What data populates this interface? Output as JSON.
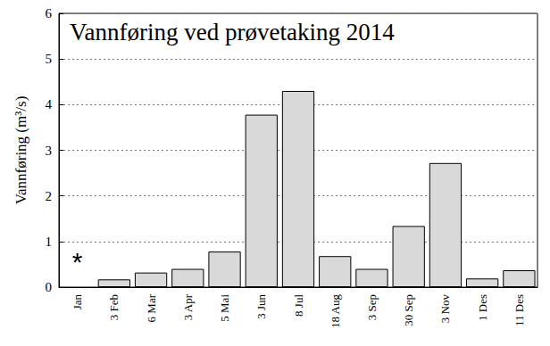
{
  "chart_data": {
    "type": "bar",
    "title": "Vannføring ved prøvetaking 2014",
    "y_label": "Vannføring (m³/s)",
    "categories": [
      "Jan",
      "3 Feb",
      "6 Mar",
      "3 Apr",
      "5 Mai",
      "3 Jun",
      "8 Jul",
      "18 Aug",
      "3 Sep",
      "30 Sep",
      "3 Nov",
      "1 Des",
      "11 Des"
    ],
    "values": [
      null,
      0.17,
      0.32,
      0.4,
      0.78,
      3.78,
      4.3,
      0.68,
      0.4,
      1.34,
      2.72,
      0.19,
      0.37
    ],
    "color": "#d9d9d9",
    "ylim": [
      0,
      6
    ],
    "yticks": [
      0,
      1,
      2,
      3,
      4,
      5,
      6
    ],
    "grid": true,
    "annotations": [
      {
        "text": "*",
        "category": "Jan"
      }
    ]
  }
}
